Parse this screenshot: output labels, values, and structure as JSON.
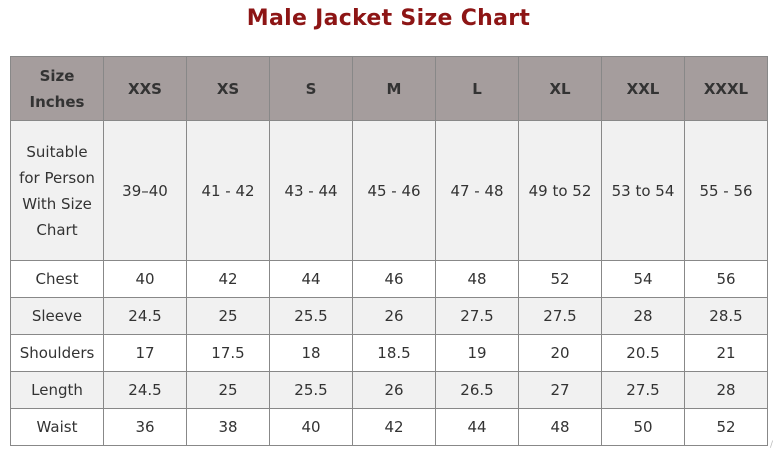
{
  "title": "Male Jacket Size Chart",
  "headers": [
    "Size Inches",
    "XXS",
    "XS",
    "S",
    "M",
    "L",
    "XL",
    "XXL",
    "XXXL"
  ],
  "rows": [
    {
      "label": "Suitable for Person With Size Chart",
      "values": [
        "39–40",
        "41 - 42",
        "43 - 44",
        "45 - 46",
        "47 - 48",
        "49 to 52",
        "53 to 54",
        "55 - 56"
      ]
    },
    {
      "label": "Chest",
      "values": [
        "40",
        "42",
        "44",
        "46",
        "48",
        "52",
        "54",
        "56"
      ]
    },
    {
      "label": "Sleeve",
      "values": [
        "24.5",
        "25",
        "25.5",
        "26",
        "27.5",
        "27.5",
        "28",
        "28.5"
      ]
    },
    {
      "label": "Shoulders",
      "values": [
        "17",
        "17.5",
        "18",
        "18.5",
        "19",
        "20",
        "20.5",
        "21"
      ]
    },
    {
      "label": "Length",
      "values": [
        "24.5",
        "25",
        "25.5",
        "26",
        "26.5",
        "27",
        "27.5",
        "28"
      ]
    },
    {
      "label": "Waist",
      "values": [
        "36",
        "38",
        "40",
        "42",
        "44",
        "48",
        "50",
        "52"
      ]
    }
  ],
  "colors": {
    "title": "#8d1515",
    "header_bg": "#a59d9d",
    "alt_row": "#f1f1f1"
  }
}
